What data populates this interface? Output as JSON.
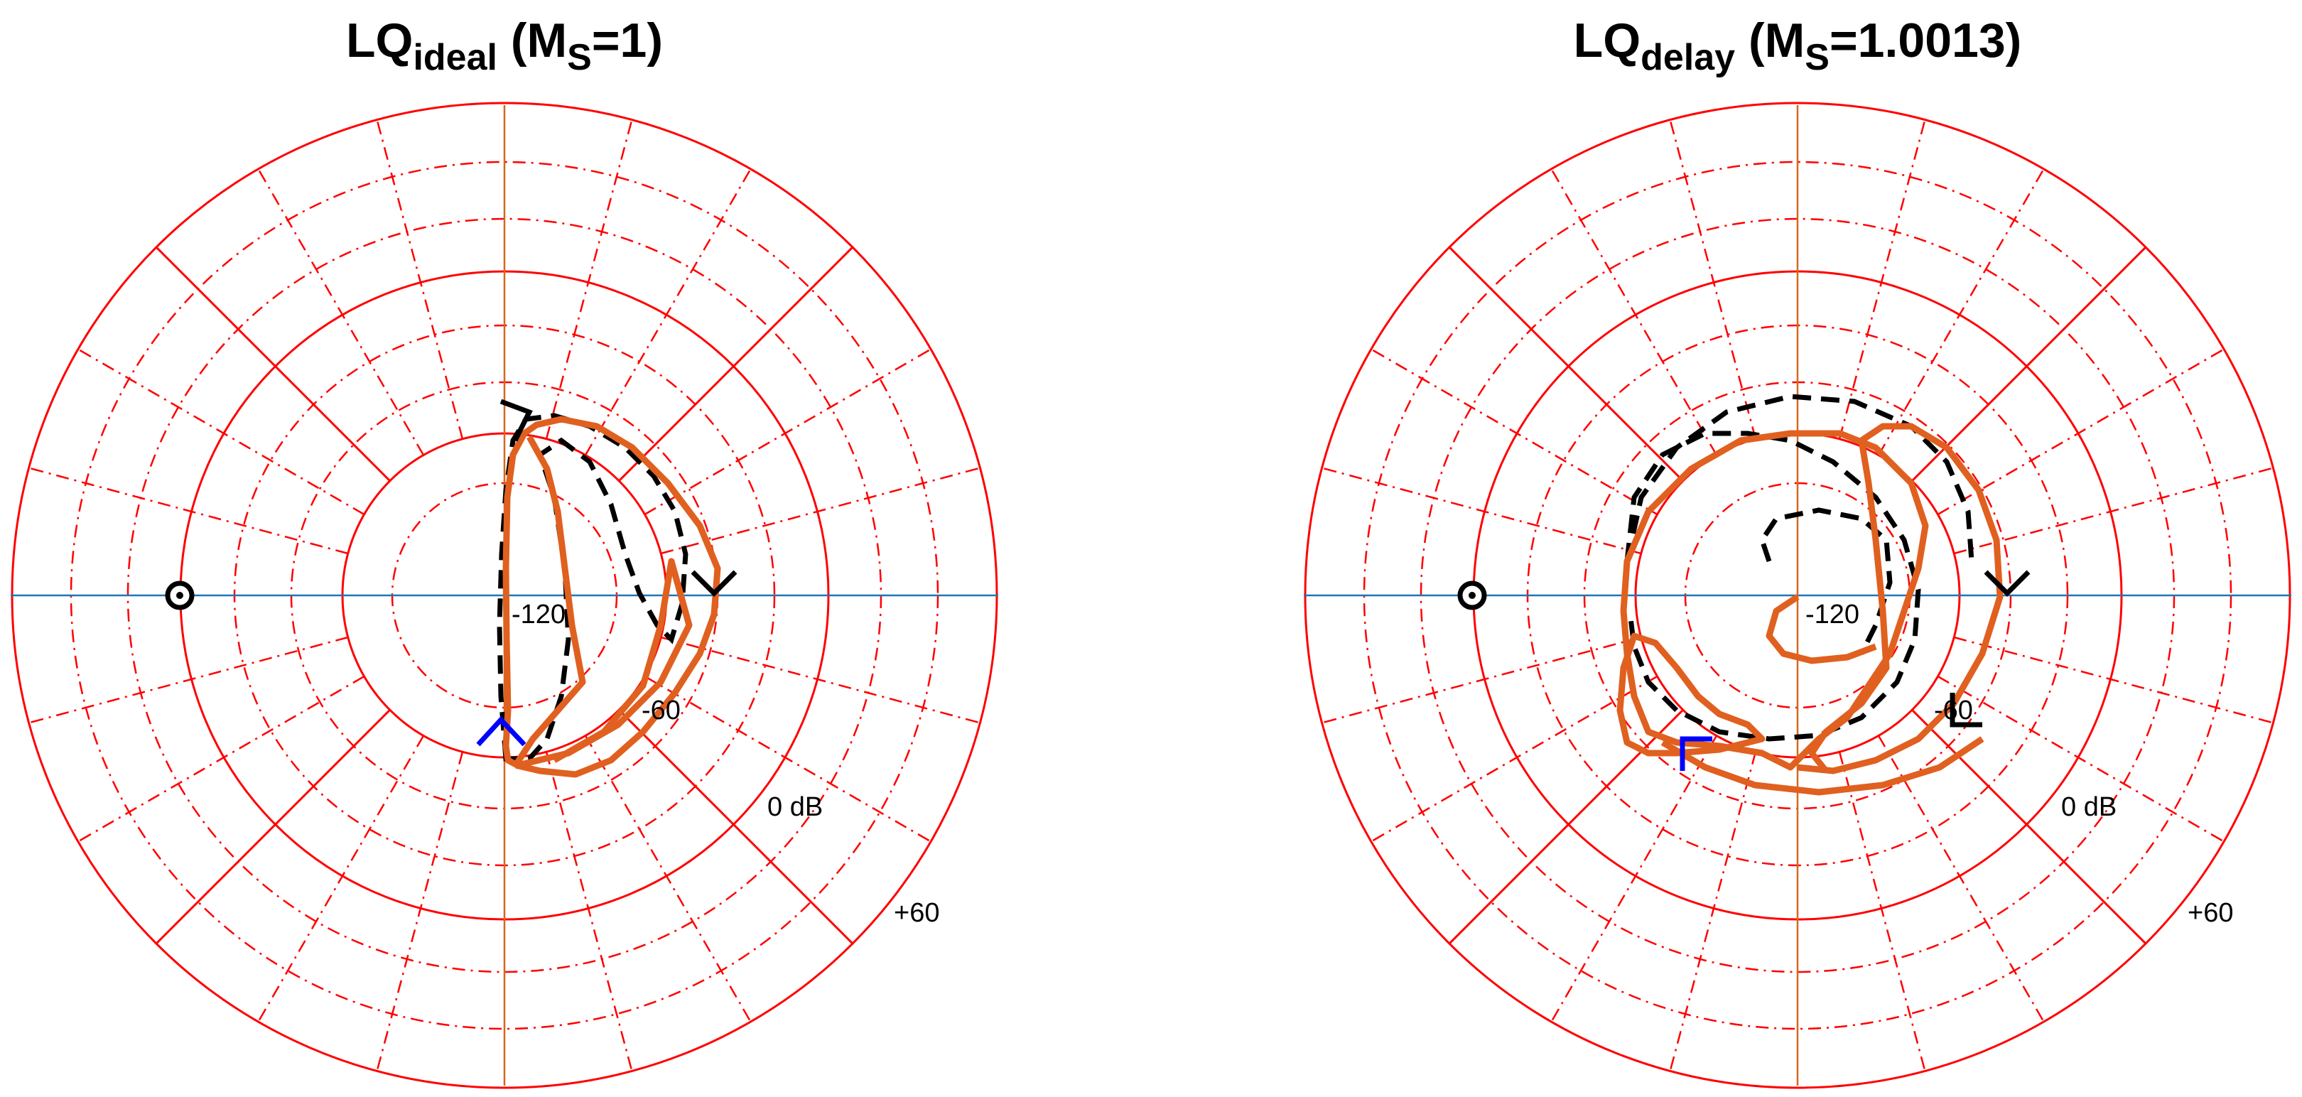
{
  "chart_data": [
    {
      "type": "polar-nichols",
      "title": {
        "main": "LQ",
        "main_subscript": "ideal",
        "paren_open": " (M",
        "paren_subscript": "S",
        "paren_close": "=1)"
      },
      "radial_ticks": [
        "-120",
        "-60",
        "0 dB",
        "+60"
      ],
      "radial_tick_values_db": [
        -120,
        -60,
        0,
        60
      ],
      "grid": true,
      "colors": {
        "grid": "#ff0000",
        "axis": "#1f77b4",
        "vertical_axis": "#d2691e",
        "curve": "#e06020",
        "dashed_curve": "#000000",
        "markers": "#000000",
        "start_marker": "#0000ff"
      }
    },
    {
      "type": "polar-nichols",
      "title": {
        "main": "LQ",
        "main_subscript": "delay",
        "paren_open": " (M",
        "paren_subscript": "S",
        "paren_close": "=1.0013)"
      },
      "radial_ticks": [
        "-120",
        "-60",
        "0 dB",
        "+60"
      ],
      "radial_tick_values_db": [
        -120,
        -60,
        0,
        60
      ],
      "grid": true,
      "colors": {
        "grid": "#ff0000",
        "axis": "#1f77b4",
        "vertical_axis": "#d2691e",
        "curve": "#e06020",
        "dashed_curve": "#000000",
        "markers": "#000000",
        "start_marker": "#0000ff"
      }
    }
  ]
}
